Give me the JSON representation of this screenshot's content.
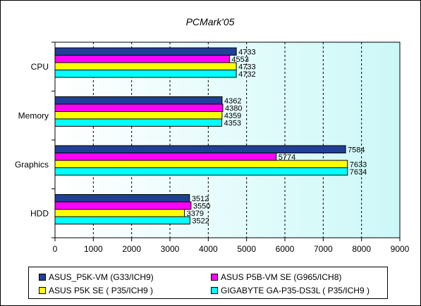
{
  "chart_data": {
    "type": "bar",
    "orientation": "horizontal",
    "title": "PCMark'05",
    "categories": [
      "CPU",
      "Memory",
      "Graphics",
      "HDD"
    ],
    "series": [
      {
        "name": "ASUS_P5K-VM (G33/ICH9)",
        "color": "#1f3f99",
        "values": [
          4733,
          4362,
          7584,
          3512
        ]
      },
      {
        "name": "ASUS P5B-VM SE (G965/ICH8)",
        "color": "#ff00ff",
        "values": [
          4553,
          4380,
          5774,
          3550
        ]
      },
      {
        "name": "ASUS P5K SE ( P35/ICH9 )",
        "color": "#ffff00",
        "values": [
          4733,
          4359,
          7633,
          3379
        ]
      },
      {
        "name": "GIGABYTE GA-P35-DS3L ( P35/ICH9 )",
        "color": "#00ffff",
        "values": [
          4732,
          4353,
          7634,
          3522
        ]
      }
    ],
    "xlim": [
      0,
      9000
    ],
    "xticks": [
      0,
      1000,
      2000,
      3000,
      4000,
      5000,
      6000,
      7000,
      8000,
      9000
    ],
    "grid": "vertical-dashed",
    "plot_background": "gradient-white-to-lightcyan",
    "legend_position": "bottom",
    "data_labels": true
  }
}
